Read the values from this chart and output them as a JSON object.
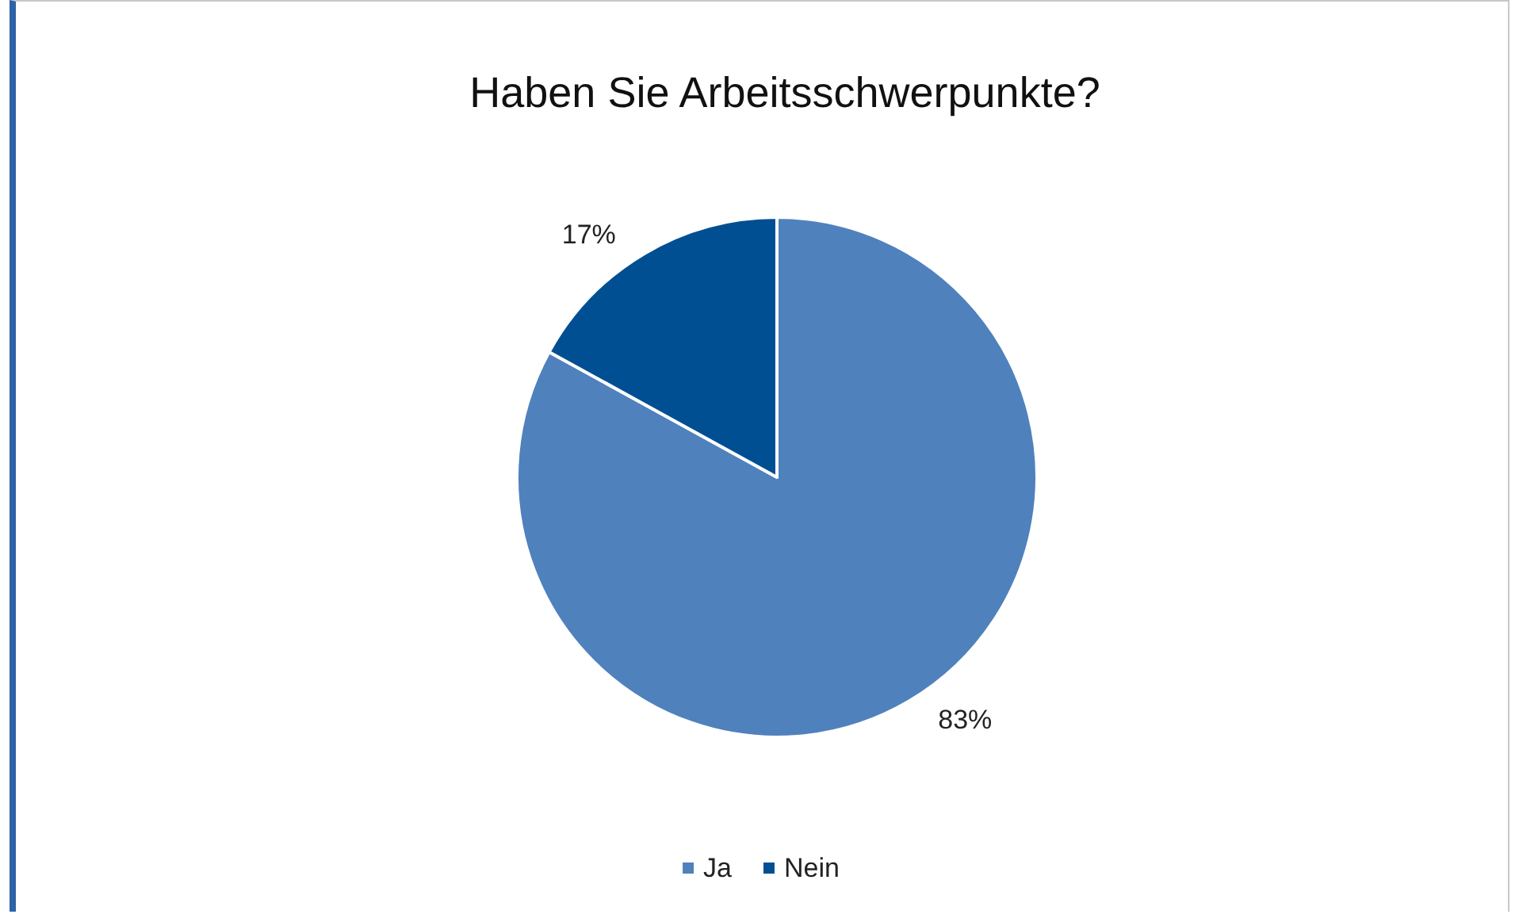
{
  "chart_data": {
    "type": "pie",
    "title": "Haben Sie Arbeitsschwerpunkte?",
    "categories": [
      "Ja",
      "Nein"
    ],
    "values": [
      83,
      17
    ],
    "colors": [
      "#4f81bd",
      "#004f93"
    ],
    "value_labels": [
      "83%",
      "17%"
    ],
    "legend": "bottom"
  }
}
